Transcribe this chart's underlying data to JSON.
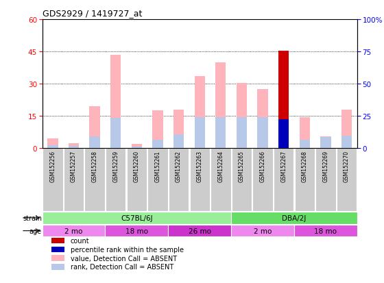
{
  "title": "GDS2929 / 1419727_at",
  "samples": [
    "GSM152256",
    "GSM152257",
    "GSM152258",
    "GSM152259",
    "GSM152260",
    "GSM152261",
    "GSM152262",
    "GSM152263",
    "GSM152264",
    "GSM152265",
    "GSM152266",
    "GSM152267",
    "GSM152268",
    "GSM152269",
    "GSM152270"
  ],
  "value_absent": [
    4.5,
    2.5,
    19.5,
    43.5,
    2.0,
    17.5,
    18.0,
    33.5,
    40.0,
    30.5,
    27.5,
    0,
    14.5,
    5.5,
    18.0
  ],
  "rank_absent_pct": [
    2.5,
    2.0,
    9.0,
    23.5,
    1.5,
    6.5,
    11.0,
    24.0,
    24.0,
    24.0,
    24.0,
    0,
    6.5,
    8.5,
    10.0
  ],
  "count_value": [
    0,
    0,
    0,
    0,
    0,
    0,
    0,
    0,
    0,
    0,
    0,
    45.5,
    0,
    0,
    0
  ],
  "percentile_rank_pct": [
    0,
    0,
    0,
    0,
    0,
    0,
    0,
    0,
    0,
    0,
    0,
    22.5,
    0,
    0,
    0
  ],
  "ylim_left": [
    0,
    60
  ],
  "ylim_right": [
    0,
    100
  ],
  "yticks_left": [
    0,
    15,
    30,
    45,
    60
  ],
  "yticks_right": [
    0,
    25,
    50,
    75,
    100
  ],
  "color_value_absent": "#FFB3BA",
  "color_rank_absent": "#B8C8E8",
  "color_count": "#CC0000",
  "color_percentile": "#0000BB",
  "color_strain_c57": "#99EE99",
  "color_strain_dba": "#66DD66",
  "color_age_light": "#EE88EE",
  "color_age_mid": "#DD55DD",
  "color_age_dark": "#CC33CC",
  "color_sample_bg": "#CCCCCC",
  "strain_groups": [
    {
      "label": "C57BL/6J",
      "start": 0,
      "end": 9,
      "color": "#99EE99"
    },
    {
      "label": "DBA/2J",
      "start": 9,
      "end": 15,
      "color": "#66DD66"
    }
  ],
  "age_groups": [
    {
      "label": "2 mo",
      "start": 0,
      "end": 3,
      "color": "#EE88EE"
    },
    {
      "label": "18 mo",
      "start": 3,
      "end": 6,
      "color": "#DD55DD"
    },
    {
      "label": "26 mo",
      "start": 6,
      "end": 9,
      "color": "#CC33CC"
    },
    {
      "label": "2 mo",
      "start": 9,
      "end": 12,
      "color": "#EE88EE"
    },
    {
      "label": "18 mo",
      "start": 12,
      "end": 15,
      "color": "#DD55DD"
    }
  ],
  "legend_items": [
    {
      "color": "#CC0000",
      "label": "count"
    },
    {
      "color": "#0000BB",
      "label": "percentile rank within the sample"
    },
    {
      "color": "#FFB3BA",
      "label": "value, Detection Call = ABSENT"
    },
    {
      "color": "#B8C8E8",
      "label": "rank, Detection Call = ABSENT"
    }
  ],
  "bar_width": 0.5
}
